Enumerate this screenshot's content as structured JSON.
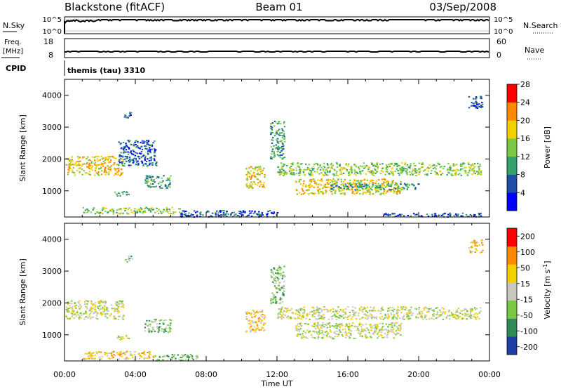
{
  "header": {
    "station": "Blackstone (fitACF)",
    "beam": "Beam 01",
    "date": "03/Sep/2008"
  },
  "summary_panels": {
    "nsky_label": "N.Sky",
    "nsky_ticks": [
      "10^5",
      "10^0"
    ],
    "nsearch_label": "N.Search",
    "nsearch_ticks": [
      "10^5",
      "10^0"
    ],
    "freq_label_1": "Freq.",
    "freq_label_2": "[MHz]",
    "freq_ticks": [
      "18",
      "8"
    ],
    "nave_label": "Nave",
    "nave_ticks": [
      "60",
      "0"
    ],
    "cpid_label": "CPID",
    "cpid_text": "themis (tau) 3310"
  },
  "chart_data": [
    {
      "type": "heatmap",
      "title": "",
      "ylabel": "Slant Range [km]",
      "yticks": [
        "1000",
        "2000",
        "3000",
        "4000"
      ],
      "ylim": [
        180,
        4500
      ],
      "xlim": [
        0,
        24
      ],
      "colorbar_label": "Power [dB]",
      "colorbar_ticks": [
        "4",
        "8",
        "12",
        "16",
        "20",
        "24",
        "28"
      ],
      "colors": [
        "#0000ff",
        "#1f4ea8",
        "#35a06e",
        "#7ac943",
        "#f5d000",
        "#ff8a00",
        "#ff0000"
      ],
      "features": [
        {
          "t0": 0.05,
          "t1": 3.3,
          "r0": 1500,
          "r1": 2100,
          "level": 4
        },
        {
          "t0": 2.8,
          "t1": 3.6,
          "r0": 850,
          "r1": 1000,
          "level": 2
        },
        {
          "t0": 3.3,
          "t1": 3.8,
          "r0": 3300,
          "r1": 3500,
          "level": 1
        },
        {
          "t0": 3.0,
          "t1": 5.2,
          "r0": 1800,
          "r1": 2600,
          "level": 1
        },
        {
          "t0": 4.5,
          "t1": 6.0,
          "r0": 1100,
          "r1": 1500,
          "level": 2
        },
        {
          "t0": 1.0,
          "t1": 6.5,
          "r0": 300,
          "r1": 500,
          "level": 3
        },
        {
          "t0": 6.5,
          "t1": 12.0,
          "r0": 200,
          "r1": 400,
          "level": 1
        },
        {
          "t0": 10.2,
          "t1": 11.3,
          "r0": 1100,
          "r1": 1800,
          "level": 4
        },
        {
          "t0": 11.6,
          "t1": 12.4,
          "r0": 2000,
          "r1": 3200,
          "level": 2
        },
        {
          "t0": 12.0,
          "t1": 23.5,
          "r0": 1500,
          "r1": 1900,
          "level": 3
        },
        {
          "t0": 13.0,
          "t1": 19.0,
          "r0": 900,
          "r1": 1400,
          "level": 4
        },
        {
          "t0": 15.0,
          "t1": 20.0,
          "r0": 1050,
          "r1": 1250,
          "level": 2
        },
        {
          "t0": 22.8,
          "t1": 23.6,
          "r0": 3600,
          "r1": 4000,
          "level": 1
        },
        {
          "t0": 18.0,
          "t1": 23.5,
          "r0": 200,
          "r1": 320,
          "level": 1
        }
      ]
    },
    {
      "type": "heatmap",
      "title": "",
      "ylabel": "Slant Range [km]",
      "yticks": [
        "1000",
        "2000",
        "3000",
        "4000"
      ],
      "ylim": [
        180,
        4500
      ],
      "xlim": [
        0,
        24
      ],
      "colorbar_label": "Velocity [m s^-1]",
      "colorbar_ticks": [
        "200",
        "100",
        "50",
        "15",
        "-15",
        "-50",
        "-100",
        "-200"
      ],
      "colors": [
        "#1f3fa8",
        "#2e8a57",
        "#7ac943",
        "#c8c8c0",
        "#f5d000",
        "#ff8a00",
        "#ff0000"
      ],
      "features": [
        {
          "t0": 0.05,
          "t1": 3.3,
          "r0": 1500,
          "r1": 2100,
          "level": 3
        },
        {
          "t0": 2.8,
          "t1": 3.6,
          "r0": 850,
          "r1": 1000,
          "level": 3
        },
        {
          "t0": 3.3,
          "t1": 3.8,
          "r0": 3300,
          "r1": 3500,
          "level": 2
        },
        {
          "t0": 4.5,
          "t1": 6.0,
          "r0": 1100,
          "r1": 1500,
          "level": 2
        },
        {
          "t0": 1.0,
          "t1": 5.0,
          "r0": 250,
          "r1": 500,
          "level": 4
        },
        {
          "t0": 5.0,
          "t1": 7.5,
          "r0": 200,
          "r1": 400,
          "level": 2
        },
        {
          "t0": 10.2,
          "t1": 11.3,
          "r0": 1100,
          "r1": 1800,
          "level": 4
        },
        {
          "t0": 11.6,
          "t1": 12.4,
          "r0": 2000,
          "r1": 3200,
          "level": 2
        },
        {
          "t0": 12.0,
          "t1": 23.5,
          "r0": 1500,
          "r1": 1900,
          "level": 3
        },
        {
          "t0": 13.0,
          "t1": 19.0,
          "r0": 900,
          "r1": 1400,
          "level": 3
        },
        {
          "t0": 22.8,
          "t1": 23.6,
          "r0": 3600,
          "r1": 4000,
          "level": 4
        }
      ]
    }
  ],
  "x_axis": {
    "ticks": [
      "00:00",
      "04:00",
      "08:00",
      "12:00",
      "16:00",
      "20:00",
      "00:00"
    ],
    "label": "Time UT"
  }
}
